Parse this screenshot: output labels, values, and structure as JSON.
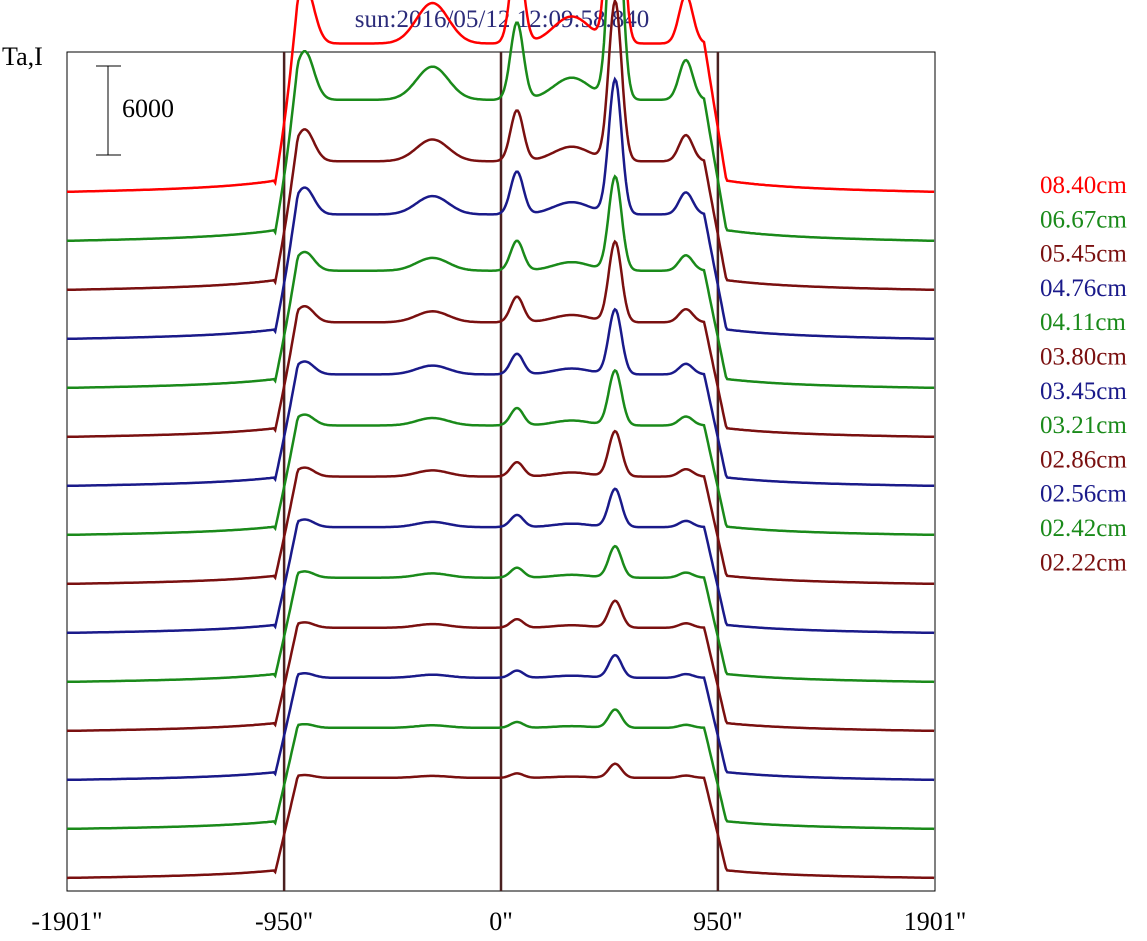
{
  "title": "sun:2016/05/12 12:09:58.840",
  "chart_data": {
    "type": "line",
    "title": "sun:2016/05/12 12:09:58.840",
    "ylabel": "Ta,I",
    "xlabel": "",
    "x_unit": "arcsec",
    "xlim": [
      -1901,
      1901
    ],
    "x_ticks": [
      {
        "value": -1901,
        "label": "-1901\""
      },
      {
        "value": -950,
        "label": "-950\""
      },
      {
        "value": 0,
        "label": "0\""
      },
      {
        "value": 950,
        "label": "950\""
      },
      {
        "value": 1901,
        "label": "1901\""
      }
    ],
    "vertical_lines_x": [
      -950,
      0,
      950
    ],
    "scale_bar": {
      "value": 6000,
      "label": "6000"
    },
    "grid": false,
    "legend_position": "right",
    "series": [
      {
        "name": "08.40cm",
        "color": "#ff0000",
        "peak_scale": 1.0,
        "offset_scale": 0
      },
      {
        "name": "06.67cm",
        "color": "#1a8a1a",
        "peak_scale": 0.86,
        "offset_scale": 1
      },
      {
        "name": "05.45cm",
        "color": "#7a1010",
        "peak_scale": 0.62,
        "offset_scale": 2
      },
      {
        "name": "04.76cm",
        "color": "#1a1a8a",
        "peak_scale": 0.54,
        "offset_scale": 3
      },
      {
        "name": "04.11cm",
        "color": "#1a8a1a",
        "peak_scale": 0.4,
        "offset_scale": 4
      },
      {
        "name": "03.80cm",
        "color": "#7a1010",
        "peak_scale": 0.35,
        "offset_scale": 5
      },
      {
        "name": "03.45cm",
        "color": "#1a1a8a",
        "peak_scale": 0.29,
        "offset_scale": 6
      },
      {
        "name": "03.21cm",
        "color": "#1a8a1a",
        "peak_scale": 0.25,
        "offset_scale": 7
      },
      {
        "name": "02.86cm",
        "color": "#7a1010",
        "peak_scale": 0.21,
        "offset_scale": 8
      },
      {
        "name": "02.56cm",
        "color": "#1a1a8a",
        "peak_scale": 0.18,
        "offset_scale": 9
      },
      {
        "name": "02.42cm",
        "color": "#1a8a1a",
        "peak_scale": 0.15,
        "offset_scale": 10
      },
      {
        "name": "02.22cm",
        "color": "#7a1010",
        "peak_scale": 0.13,
        "offset_scale": 11
      }
    ],
    "extra_traces_below_legend": [
      {
        "color": "#1a1a8a"
      },
      {
        "color": "#1a8a1a"
      },
      {
        "color": "#7a1010"
      }
    ]
  }
}
